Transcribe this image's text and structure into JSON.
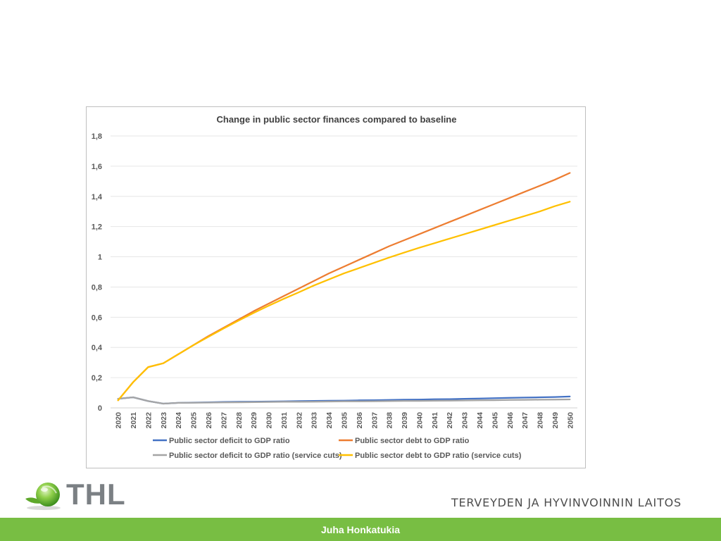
{
  "chart_data": {
    "type": "line",
    "title": "Change in public sector finances compared to baseline",
    "xlabel": "",
    "ylabel": "",
    "ylim": [
      0,
      1.8
    ],
    "yticks": [
      "0",
      "0,2",
      "0,4",
      "0,6",
      "0,8",
      "1",
      "1,2",
      "1,4",
      "1,6",
      "1,8"
    ],
    "grid": true,
    "legend_position": "bottom",
    "x": [
      2020,
      2021,
      2022,
      2023,
      2024,
      2025,
      2026,
      2027,
      2028,
      2029,
      2030,
      2031,
      2032,
      2033,
      2034,
      2035,
      2036,
      2037,
      2038,
      2039,
      2040,
      2041,
      2042,
      2043,
      2044,
      2045,
      2046,
      2047,
      2048,
      2049,
      2050
    ],
    "series": [
      {
        "name": "Public sector deficit to GDP ratio",
        "color": "#4472c4",
        "values": [
          0.06,
          0.07,
          0.045,
          0.028,
          0.033,
          0.035,
          0.037,
          0.039,
          0.04,
          0.041,
          0.042,
          0.043,
          0.045,
          0.046,
          0.047,
          0.048,
          0.05,
          0.051,
          0.052,
          0.054,
          0.055,
          0.057,
          0.058,
          0.06,
          0.062,
          0.064,
          0.066,
          0.068,
          0.07,
          0.072,
          0.075
        ]
      },
      {
        "name": "Public sector debt to GDP ratio",
        "color": "#ed7d31",
        "values": [
          0.05,
          0.17,
          0.27,
          0.295,
          0.355,
          0.415,
          0.475,
          0.53,
          0.585,
          0.64,
          0.69,
          0.74,
          0.79,
          0.84,
          0.89,
          0.935,
          0.98,
          1.025,
          1.07,
          1.11,
          1.15,
          1.19,
          1.23,
          1.27,
          1.31,
          1.35,
          1.39,
          1.43,
          1.47,
          1.51,
          1.555
        ]
      },
      {
        "name": "Public sector deficit to GDP ratio (service cuts)",
        "color": "#a5a5a5",
        "values": [
          0.06,
          0.07,
          0.045,
          0.028,
          0.033,
          0.034,
          0.035,
          0.036,
          0.037,
          0.038,
          0.039,
          0.04,
          0.04,
          0.041,
          0.042,
          0.043,
          0.043,
          0.044,
          0.045,
          0.046,
          0.046,
          0.047,
          0.048,
          0.049,
          0.05,
          0.051,
          0.052,
          0.053,
          0.054,
          0.055,
          0.056
        ]
      },
      {
        "name": "Public sector debt to GDP ratio (service cuts)",
        "color": "#ffc000",
        "values": [
          0.05,
          0.17,
          0.27,
          0.295,
          0.355,
          0.415,
          0.47,
          0.525,
          0.578,
          0.628,
          0.676,
          0.722,
          0.765,
          0.81,
          0.85,
          0.89,
          0.925,
          0.96,
          0.995,
          1.028,
          1.06,
          1.09,
          1.12,
          1.15,
          1.18,
          1.21,
          1.24,
          1.27,
          1.3,
          1.335,
          1.365
        ]
      }
    ]
  },
  "logo": {
    "wordmark": "THL",
    "accent_color": "#78be43",
    "icon": "thl-globe-leaf-icon"
  },
  "footer": {
    "organization": "TERVEYDEN JA HYVINVOINNIN LAITOS",
    "presenter": "Juha Honkatukia",
    "bar_color": "#78be43"
  }
}
